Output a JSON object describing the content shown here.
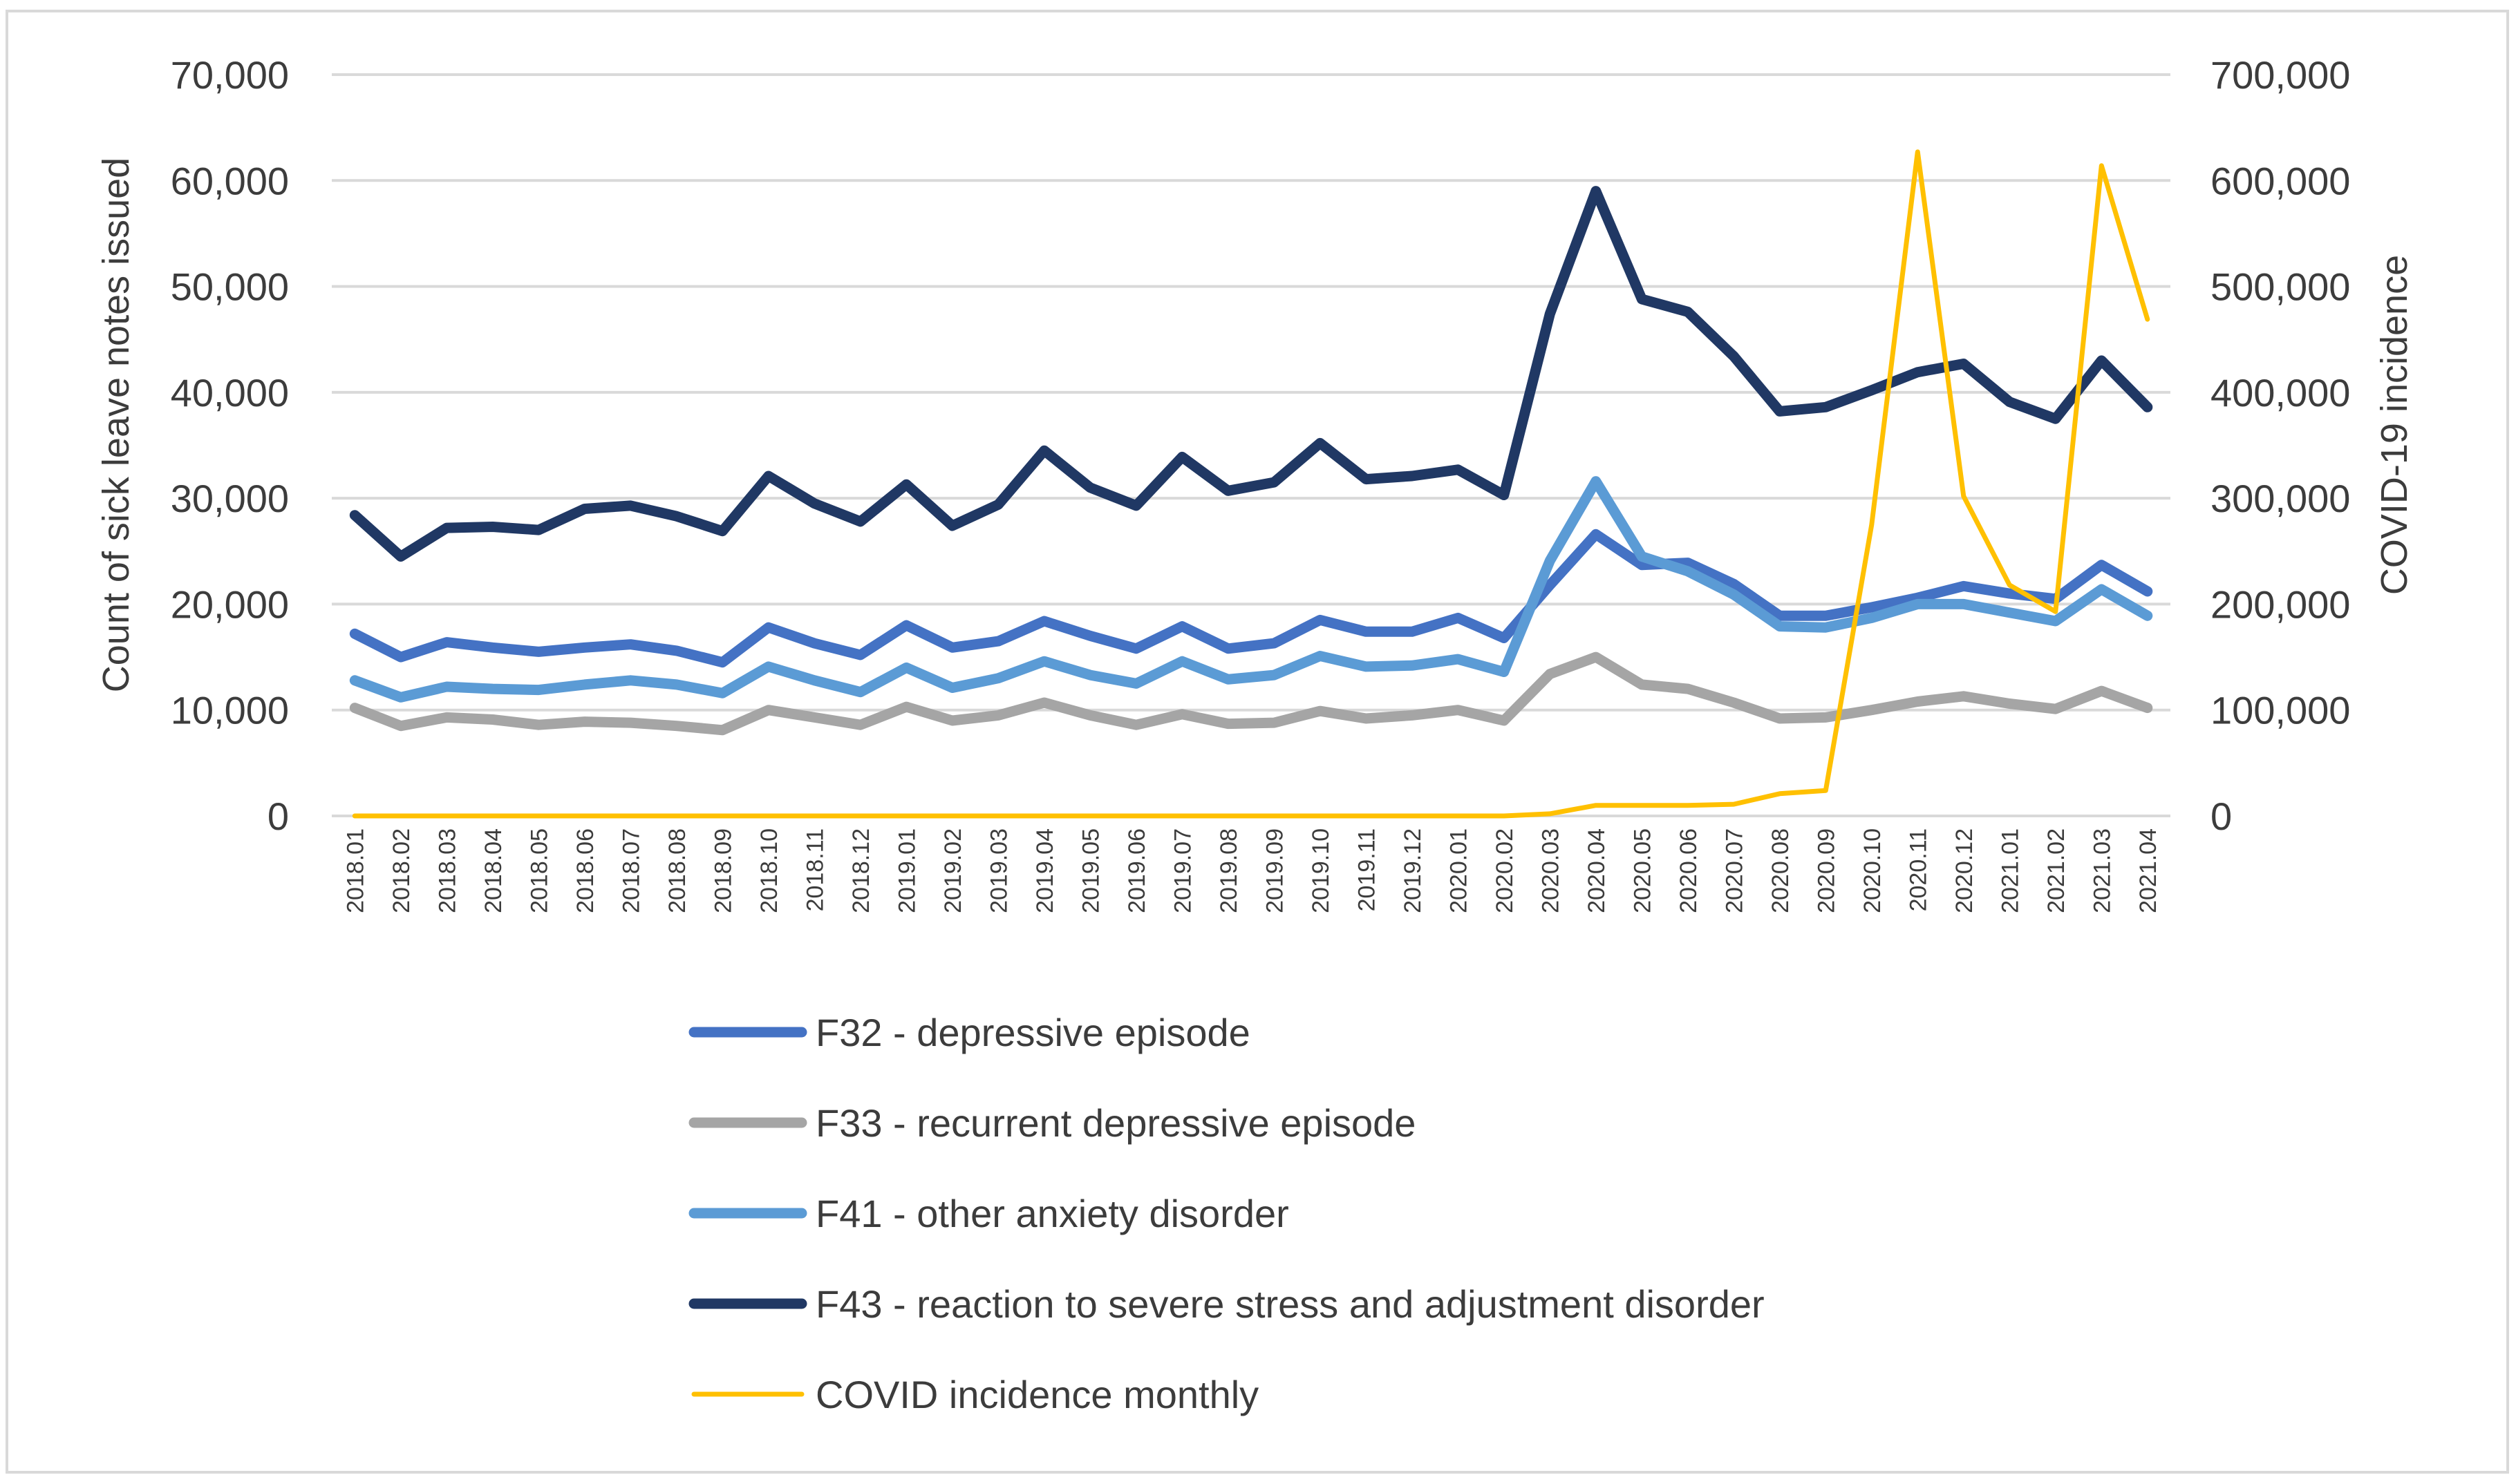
{
  "chart_data": {
    "type": "line",
    "title": "",
    "ylabel_left": "Count of sick leave notes issued",
    "ylabel_right": "COVID-19 incidence",
    "xlabel": "",
    "ylim_left": [
      0,
      70000
    ],
    "ylim_right": [
      0,
      700000
    ],
    "yticks_left": [
      "0",
      "10,000",
      "20,000",
      "30,000",
      "40,000",
      "50,000",
      "60,000",
      "70,000"
    ],
    "yticks_right": [
      "0",
      "100,000",
      "200,000",
      "300,000",
      "400,000",
      "500,000",
      "600,000",
      "700,000"
    ],
    "grid": true,
    "legend_position": "bottom",
    "categories": [
      "2018.01",
      "2018.02",
      "2018.03",
      "2018.04",
      "2018.05",
      "2018.06",
      "2018.07",
      "2018.08",
      "2018.09",
      "2018.10",
      "2018.11",
      "2018.12",
      "2019.01",
      "2019.02",
      "2019.03",
      "2019.04",
      "2019.05",
      "2019.06",
      "2019.07",
      "2019.08",
      "2019.09",
      "2019.10",
      "2019.11",
      "2019.12",
      "2020.01",
      "2020.02",
      "2020.03",
      "2020.04",
      "2020.05",
      "2020.06",
      "2020.07",
      "2020.08",
      "2020.09",
      "2020.10",
      "2020.11",
      "2020.12",
      "2021.01",
      "2021.02",
      "2021.03",
      "2021.04"
    ],
    "series": [
      {
        "name": "F32 - depressive episode",
        "axis": "left",
        "color": "#4472C4",
        "values": [
          17200,
          15000,
          16400,
          15900,
          15500,
          15900,
          16200,
          15600,
          14500,
          17800,
          16300,
          15200,
          18000,
          15900,
          16500,
          18400,
          17000,
          15800,
          17900,
          15800,
          16300,
          18500,
          17400,
          17400,
          18700,
          16800,
          21800,
          26600,
          23700,
          23900,
          21900,
          18900,
          18900,
          19700,
          20600,
          21700,
          21000,
          20500,
          23700,
          21200
        ],
        "legend_label": "F32 - depressive episode"
      },
      {
        "name": "F33 - recurrent depressive episode",
        "axis": "left",
        "color": "#A5A5A5",
        "values": [
          10200,
          8500,
          9300,
          9100,
          8600,
          8900,
          8800,
          8500,
          8100,
          10000,
          9300,
          8600,
          10300,
          9000,
          9500,
          10700,
          9500,
          8600,
          9600,
          8700,
          8800,
          9900,
          9200,
          9500,
          10000,
          9000,
          13400,
          15000,
          12400,
          12000,
          10700,
          9200,
          9300,
          10000,
          10800,
          11300,
          10600,
          10100,
          11800,
          10200
        ],
        "legend_label": "F33 - recurrent depressive episode"
      },
      {
        "name": "F41 - other anxiety disorder",
        "axis": "left",
        "color": "#5B9BD5",
        "values": [
          12800,
          11200,
          12200,
          12000,
          11900,
          12400,
          12800,
          12400,
          11600,
          14100,
          12800,
          11700,
          14000,
          12100,
          13000,
          14600,
          13300,
          12500,
          14600,
          12900,
          13300,
          15100,
          14100,
          14200,
          14800,
          13600,
          24100,
          31600,
          24500,
          23100,
          20900,
          17900,
          17800,
          18700,
          20000,
          20000,
          19200,
          18400,
          21400,
          18900
        ],
        "legend_label": "F41 - other anxiety disorder"
      },
      {
        "name": "F43 - reaction to severe stress and adjustment disorder",
        "axis": "left",
        "color": "#203864",
        "values": [
          28400,
          24500,
          27200,
          27300,
          27000,
          29000,
          29300,
          28300,
          26900,
          32100,
          29500,
          27800,
          31300,
          27400,
          29400,
          34500,
          31000,
          29300,
          33900,
          30700,
          31500,
          35200,
          31800,
          32100,
          32700,
          30300,
          47400,
          59000,
          48800,
          47600,
          43400,
          38200,
          38600,
          40200,
          41900,
          42700,
          39100,
          37500,
          43000,
          38600
        ],
        "legend_label": "F43 - reaction to severe stress and adjustment disorder"
      },
      {
        "name": "COVID incidence monthly",
        "axis": "right",
        "color": "#FFC000",
        "values": [
          0,
          0,
          0,
          0,
          0,
          0,
          0,
          0,
          0,
          0,
          0,
          0,
          0,
          0,
          0,
          0,
          0,
          0,
          0,
          0,
          0,
          0,
          0,
          0,
          0,
          0,
          2000,
          10000,
          10000,
          10000,
          11000,
          21000,
          24000,
          275000,
          627000,
          302000,
          218000,
          193000,
          614000,
          469000
        ],
        "legend_label": "COVID incidence monthly"
      }
    ]
  }
}
